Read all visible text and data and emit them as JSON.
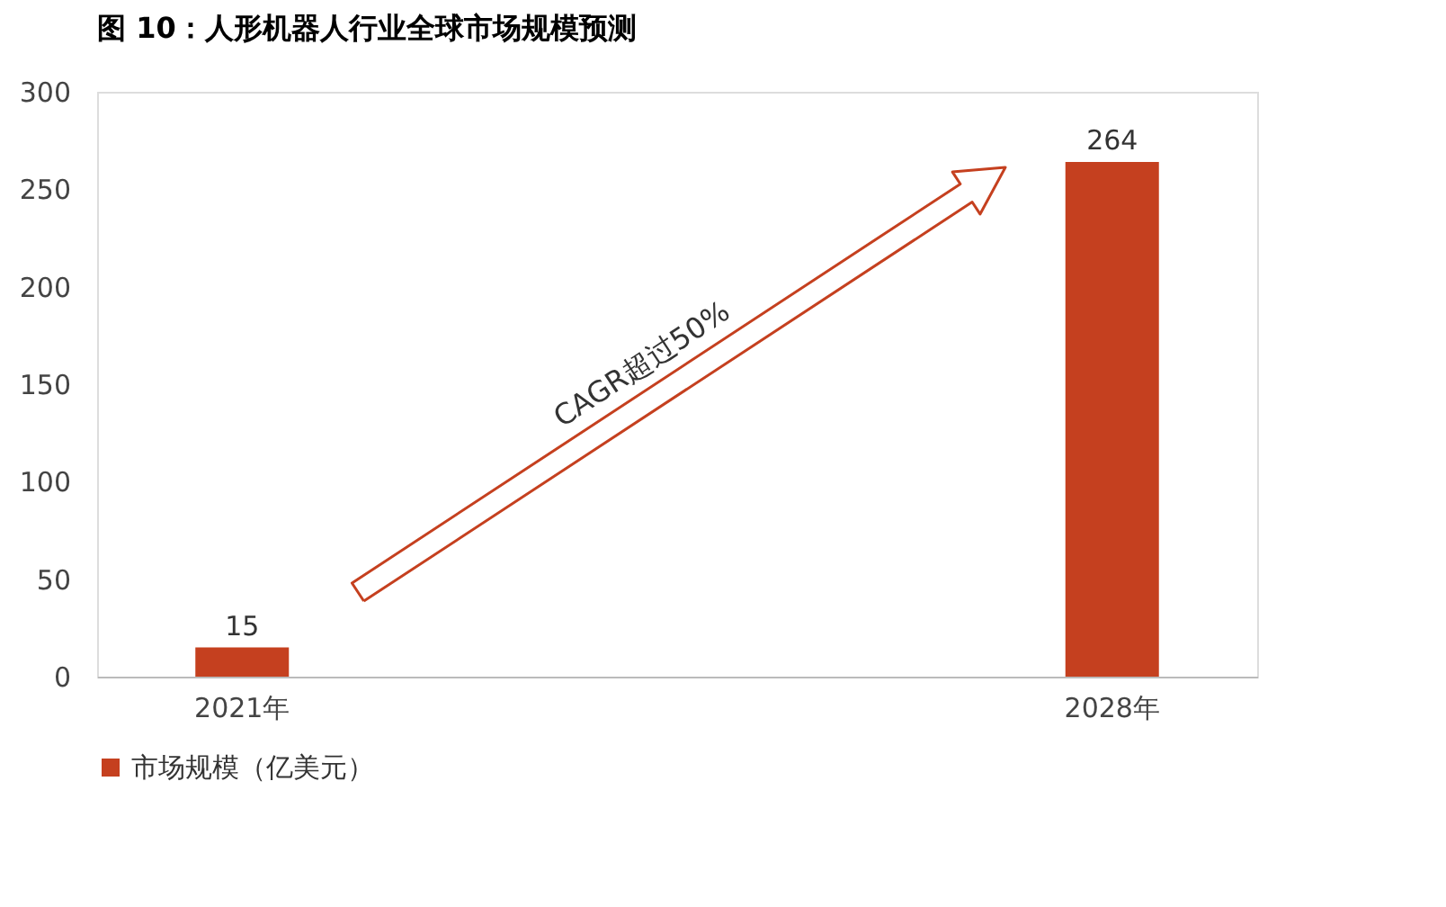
{
  "chart_data": {
    "type": "bar",
    "title": "图 10：人形机器人行业全球市场规模预测",
    "categories": [
      "2021年",
      null,
      null,
      "2028年"
    ],
    "series": [
      {
        "name": "市场规模（亿美元）",
        "color": "#c5401f",
        "values": [
          15,
          null,
          null,
          264
        ]
      }
    ],
    "ylim": [
      0,
      300
    ],
    "yticks": [
      0,
      50,
      100,
      150,
      200,
      250,
      300
    ],
    "data_labels": true,
    "grid": false,
    "legend": "bottom",
    "annotations": [
      "CAGR超过50%"
    ]
  }
}
